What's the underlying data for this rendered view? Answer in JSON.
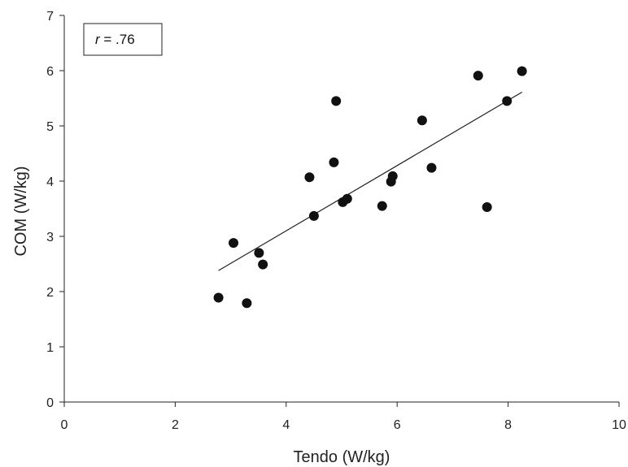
{
  "chart_data": {
    "type": "scatter",
    "xlabel": "Tendo (W/kg)",
    "ylabel": "COM (W/kg)",
    "xlim": [
      0,
      10
    ],
    "ylim": [
      0,
      7
    ],
    "xticks": [
      0,
      2,
      4,
      6,
      8,
      10
    ],
    "yticks": [
      0,
      1,
      2,
      3,
      4,
      5,
      6,
      7
    ],
    "grid": false,
    "annotation": {
      "r_symbol": "r",
      "r_value": " = .76"
    },
    "series": [
      {
        "points": [
          {
            "x": 2.78,
            "y": 1.89
          },
          {
            "x": 3.05,
            "y": 2.88
          },
          {
            "x": 3.29,
            "y": 1.79
          },
          {
            "x": 3.51,
            "y": 2.7
          },
          {
            "x": 3.58,
            "y": 2.49
          },
          {
            "x": 4.42,
            "y": 4.07
          },
          {
            "x": 4.5,
            "y": 3.37
          },
          {
            "x": 4.86,
            "y": 4.34
          },
          {
            "x": 4.9,
            "y": 5.45
          },
          {
            "x": 5.02,
            "y": 3.62
          },
          {
            "x": 5.1,
            "y": 3.68
          },
          {
            "x": 5.73,
            "y": 3.55
          },
          {
            "x": 5.89,
            "y": 3.99
          },
          {
            "x": 5.92,
            "y": 4.09
          },
          {
            "x": 6.45,
            "y": 5.1
          },
          {
            "x": 6.62,
            "y": 4.24
          },
          {
            "x": 7.46,
            "y": 5.91
          },
          {
            "x": 7.62,
            "y": 3.53
          },
          {
            "x": 7.98,
            "y": 5.45
          },
          {
            "x": 8.25,
            "y": 5.99
          }
        ],
        "color": "#111111"
      }
    ],
    "trendline": {
      "x": [
        2.78,
        8.25
      ],
      "y": [
        2.38,
        5.61
      ]
    }
  }
}
